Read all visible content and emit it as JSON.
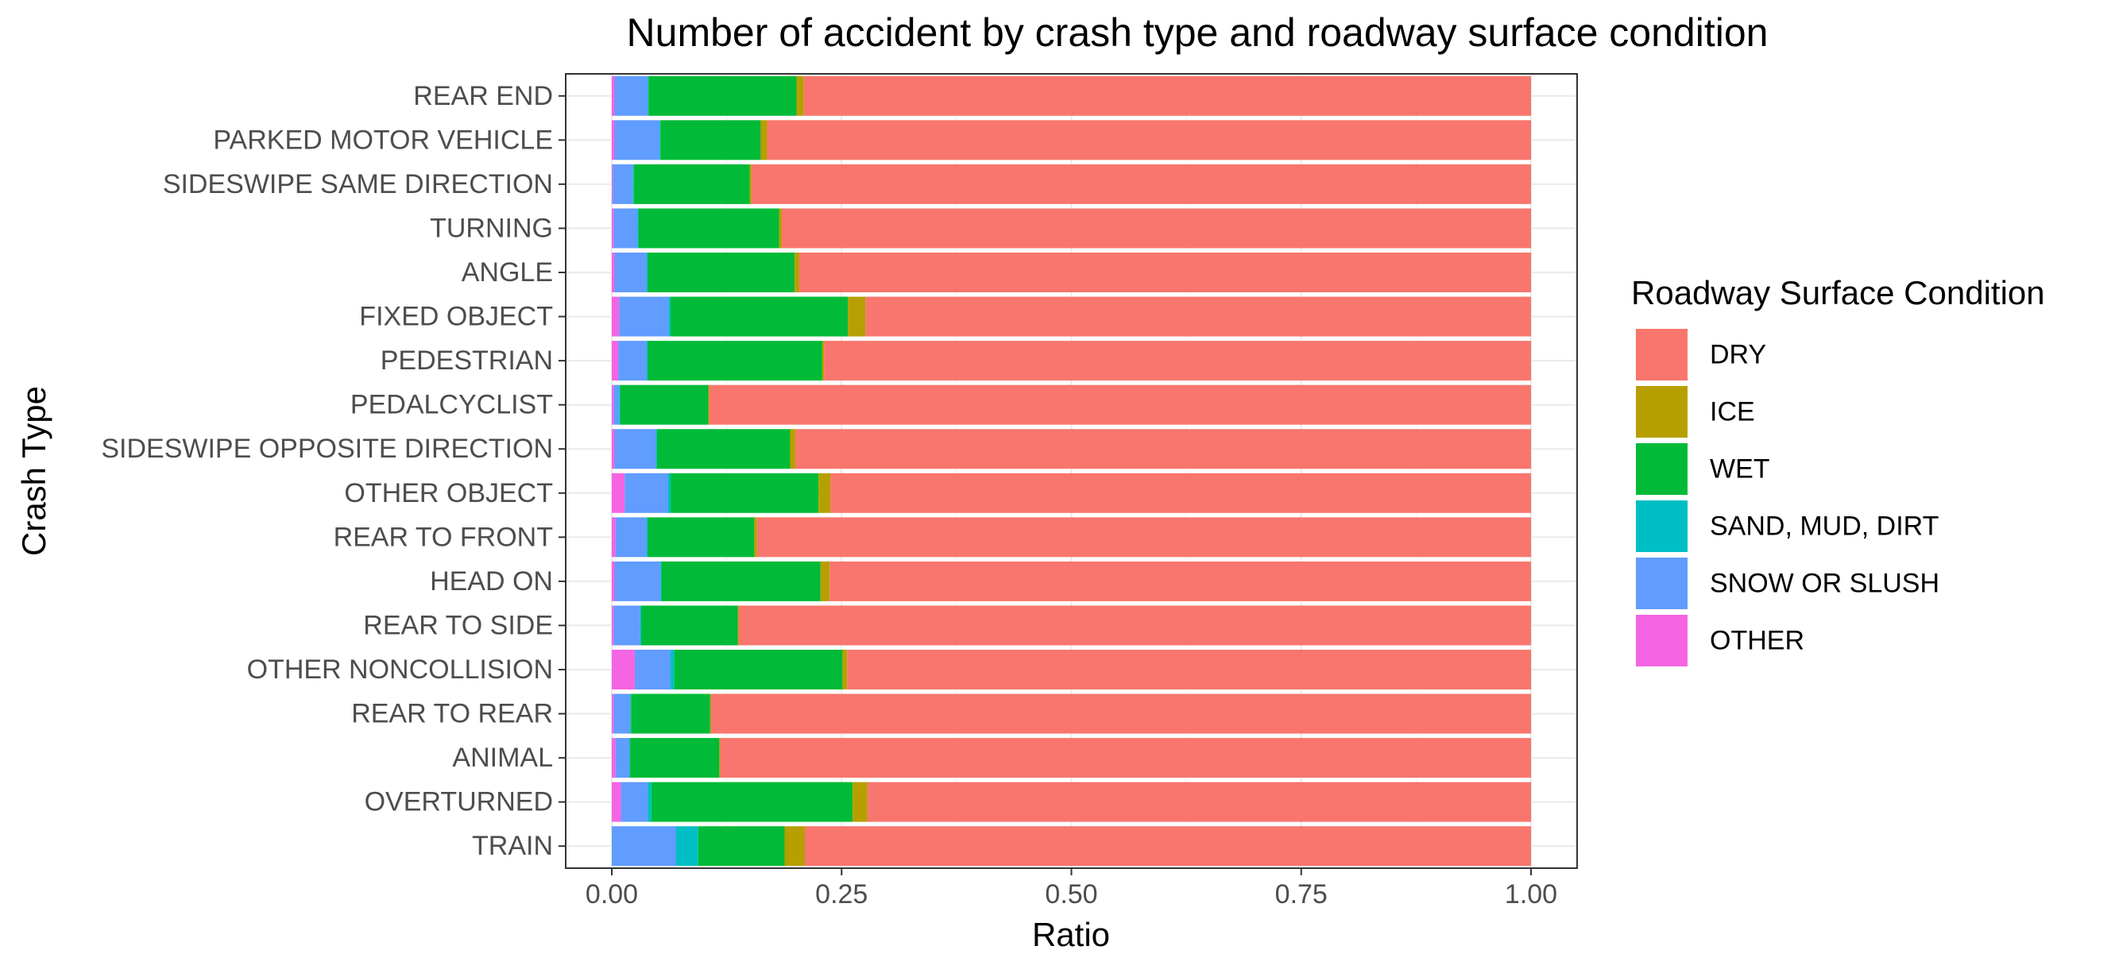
{
  "chart_data": {
    "type": "bar",
    "orientation": "horizontal",
    "stacked": true,
    "title": "Number of accident by crash type and roadway surface condition",
    "xlabel": "Ratio",
    "ylabel": "Crash Type",
    "xlim": [
      0,
      1
    ],
    "xticks": [
      "0.00",
      "0.25",
      "0.50",
      "0.75",
      "1.00"
    ],
    "grid": true,
    "legend": {
      "title": "Roadway Surface Condition",
      "placement": "right"
    },
    "categories": [
      "REAR END",
      "PARKED MOTOR VEHICLE",
      "SIDESWIPE SAME DIRECTION",
      "TURNING",
      "ANGLE",
      "FIXED OBJECT",
      "PEDESTRIAN",
      "PEDALCYCLIST",
      "SIDESWIPE OPPOSITE DIRECTION",
      "OTHER OBJECT",
      "REAR TO FRONT",
      "HEAD ON",
      "REAR TO SIDE",
      "OTHER NONCOLLISION",
      "REAR TO REAR",
      "ANIMAL",
      "OVERTURNED",
      "TRAIN"
    ],
    "stack_order": [
      "OTHER",
      "SNOW OR SLUSH",
      "SAND, MUD, DIRT",
      "WET",
      "ICE",
      "DRY"
    ],
    "series": [
      {
        "name": "DRY",
        "color": "#F8766D",
        "values": [
          0.791,
          0.831,
          0.848,
          0.815,
          0.796,
          0.724,
          0.769,
          0.894,
          0.8,
          0.762,
          0.842,
          0.763,
          0.862,
          0.744,
          0.892,
          0.882,
          0.722,
          0.79
        ]
      },
      {
        "name": "ICE",
        "color": "#B79F00",
        "values": [
          0.008,
          0.007,
          0.002,
          0.003,
          0.005,
          0.019,
          0.002,
          0.001,
          0.006,
          0.013,
          0.003,
          0.01,
          0.001,
          0.005,
          0.001,
          0.001,
          0.016,
          0.022
        ]
      },
      {
        "name": "WET",
        "color": "#00BA38",
        "values": [
          0.161,
          0.109,
          0.126,
          0.153,
          0.16,
          0.193,
          0.19,
          0.096,
          0.145,
          0.161,
          0.116,
          0.173,
          0.105,
          0.183,
          0.086,
          0.097,
          0.219,
          0.094
        ]
      },
      {
        "name": "SAND, MUD, DIRT",
        "color": "#00BFC4",
        "values": [
          0.001,
          0.001,
          0.001,
          0.001,
          0.001,
          0.002,
          0.001,
          0.001,
          0.001,
          0.003,
          0.001,
          0.001,
          0.001,
          0.004,
          0.001,
          0.001,
          0.004,
          0.024
        ]
      },
      {
        "name": "SNOW OR SLUSH",
        "color": "#619CFF",
        "values": [
          0.036,
          0.049,
          0.022,
          0.026,
          0.035,
          0.054,
          0.031,
          0.006,
          0.045,
          0.047,
          0.034,
          0.05,
          0.029,
          0.039,
          0.018,
          0.015,
          0.029,
          0.07
        ]
      },
      {
        "name": "OTHER",
        "color": "#F564E3",
        "values": [
          0.003,
          0.003,
          0.001,
          0.002,
          0.003,
          0.008,
          0.007,
          0.002,
          0.003,
          0.014,
          0.004,
          0.003,
          0.002,
          0.025,
          0.002,
          0.004,
          0.01,
          0.0
        ]
      }
    ]
  }
}
